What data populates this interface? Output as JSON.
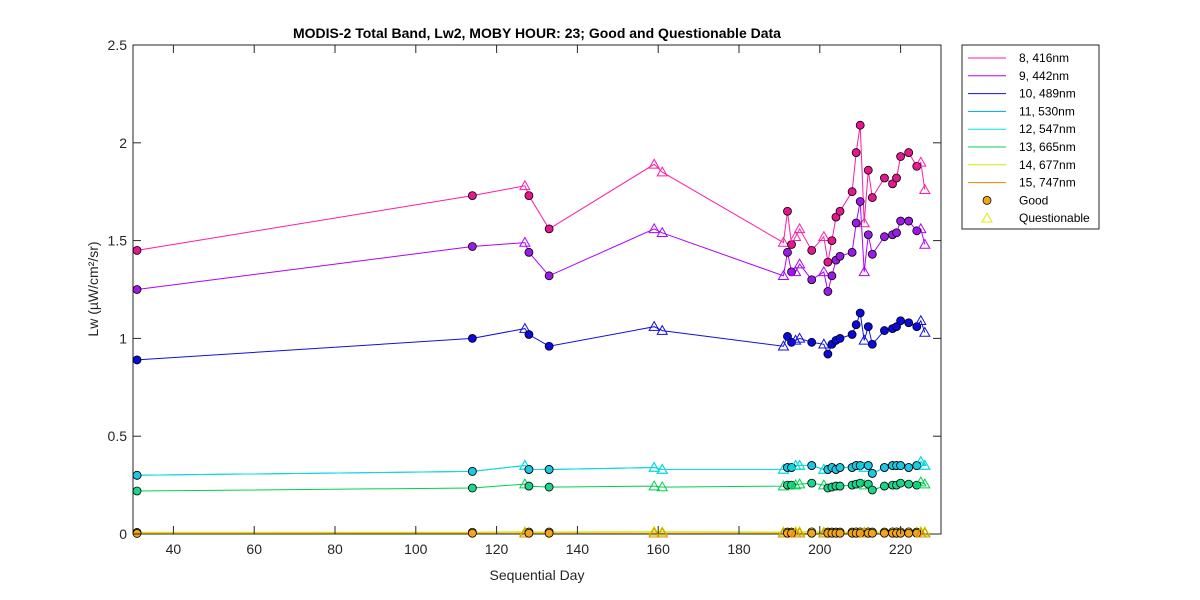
{
  "chart_data": {
    "type": "line",
    "title": "MODIS-2 Total Band,  Lw2, MOBY HOUR: 23;  Good and Questionable Data",
    "xlabel": "Sequential Day",
    "ylabel": "Lw (µW/cm²/sr)",
    "xlim": [
      30,
      230
    ],
    "ylim": [
      0,
      2.5
    ],
    "xticks": [
      40,
      60,
      80,
      100,
      120,
      140,
      160,
      180,
      200,
      220
    ],
    "yticks": [
      0,
      0.5,
      1,
      1.5,
      2,
      2.5
    ],
    "ytick_labels": [
      "0",
      "0.5",
      "1",
      "1.5",
      "2",
      "2.5"
    ],
    "grid": false,
    "legend_position": "outside-top-right",
    "x": [
      31,
      114,
      127,
      128,
      133,
      159,
      161,
      191,
      192,
      193,
      194,
      195,
      198,
      201,
      202,
      203,
      204,
      205,
      208,
      209,
      210,
      211,
      212,
      213,
      216,
      218,
      219,
      220,
      222,
      224,
      225,
      226
    ],
    "quality": [
      "G",
      "G",
      "Q",
      "G",
      "G",
      "Q",
      "Q",
      "Q",
      "G",
      "G",
      "Q",
      "Q",
      "G",
      "Q",
      "G",
      "G",
      "G",
      "G",
      "G",
      "G",
      "G",
      "Q",
      "G",
      "G",
      "G",
      "G",
      "G",
      "G",
      "G",
      "G",
      "Q",
      "Q"
    ],
    "series": [
      {
        "name": "8, 416nm",
        "color": "#ff1aa8",
        "marker_color": "#e6168f",
        "values": [
          1.45,
          1.73,
          1.78,
          1.73,
          1.56,
          1.89,
          1.85,
          1.49,
          1.65,
          1.48,
          1.52,
          1.56,
          1.45,
          1.52,
          1.39,
          1.5,
          1.62,
          1.65,
          1.75,
          1.95,
          2.09,
          1.59,
          1.86,
          1.72,
          1.82,
          1.79,
          1.82,
          1.93,
          1.95,
          1.88,
          1.9,
          1.76
        ]
      },
      {
        "name": "9, 442nm",
        "color": "#b000ff",
        "marker_color": "#9a1ae6",
        "values": [
          1.25,
          1.47,
          1.49,
          1.44,
          1.32,
          1.56,
          1.54,
          1.32,
          1.44,
          1.34,
          1.34,
          1.38,
          1.3,
          1.34,
          1.24,
          1.32,
          1.4,
          1.42,
          1.44,
          1.59,
          1.7,
          1.34,
          1.53,
          1.43,
          1.52,
          1.53,
          1.54,
          1.6,
          1.6,
          1.55,
          1.56,
          1.48
        ]
      },
      {
        "name": "10, 489nm",
        "color": "#1010e0",
        "marker_color": "#0a0adc",
        "values": [
          0.89,
          1.0,
          1.05,
          1.02,
          0.96,
          1.06,
          1.04,
          0.96,
          1.01,
          0.98,
          0.99,
          1.0,
          0.98,
          0.97,
          0.92,
          0.97,
          0.99,
          1.0,
          1.02,
          1.07,
          1.13,
          0.99,
          1.06,
          0.97,
          1.04,
          1.05,
          1.06,
          1.09,
          1.08,
          1.06,
          1.09,
          1.03
        ]
      },
      {
        "name": "11, 530nm",
        "color": "#00a0e0",
        "marker_color": "#1a9fe6",
        "values": [
          0.3,
          0.32,
          0.35,
          0.33,
          0.33,
          0.34,
          0.33,
          0.33,
          0.34,
          0.34,
          0.35,
          0.35,
          0.35,
          0.33,
          0.33,
          0.34,
          0.33,
          0.34,
          0.34,
          0.35,
          0.35,
          0.34,
          0.35,
          0.31,
          0.34,
          0.35,
          0.35,
          0.35,
          0.34,
          0.35,
          0.37,
          0.35
        ]
      },
      {
        "name": "12, 547nm",
        "color": "#00e0e0",
        "marker_color": "#1ac8e6",
        "values": [
          0.3,
          0.32,
          0.35,
          0.33,
          0.33,
          0.34,
          0.33,
          0.33,
          0.34,
          0.34,
          0.35,
          0.35,
          0.35,
          0.33,
          0.33,
          0.34,
          0.33,
          0.34,
          0.34,
          0.35,
          0.35,
          0.34,
          0.35,
          0.31,
          0.34,
          0.35,
          0.35,
          0.35,
          0.34,
          0.35,
          0.37,
          0.35
        ]
      },
      {
        "name": "13, 665nm",
        "color": "#00d050",
        "marker_color": "#1ad68a",
        "values": [
          0.22,
          0.235,
          0.255,
          0.245,
          0.24,
          0.245,
          0.24,
          0.245,
          0.25,
          0.25,
          0.25,
          0.255,
          0.26,
          0.25,
          0.235,
          0.24,
          0.245,
          0.245,
          0.25,
          0.255,
          0.26,
          0.25,
          0.255,
          0.225,
          0.245,
          0.25,
          0.25,
          0.26,
          0.255,
          0.25,
          0.265,
          0.255
        ]
      },
      {
        "name": "14, 677nm",
        "color": "#c0f000",
        "marker_color": "#d8e62a",
        "values": [
          0.008,
          0.009,
          0.011,
          0.01,
          0.01,
          0.012,
          0.011,
          0.01,
          0.01,
          0.01,
          0.011,
          0.011,
          0.011,
          0.01,
          0.01,
          0.01,
          0.01,
          0.01,
          0.01,
          0.011,
          0.011,
          0.01,
          0.011,
          0.01,
          0.01,
          0.011,
          0.011,
          0.011,
          0.011,
          0.01,
          0.012,
          0.011
        ]
      },
      {
        "name": "15, 747nm",
        "color": "#e08a00",
        "marker_color": "#f5a31a",
        "values": [
          0.003,
          0.004,
          0.004,
          0.004,
          0.004,
          0.004,
          0.004,
          0.004,
          0.004,
          0.004,
          0.004,
          0.004,
          0.004,
          0.004,
          0.004,
          0.004,
          0.004,
          0.004,
          0.004,
          0.004,
          0.004,
          0.004,
          0.004,
          0.004,
          0.004,
          0.004,
          0.004,
          0.004,
          0.004,
          0.004,
          0.004,
          0.004
        ]
      }
    ],
    "marker_legend": [
      {
        "name": "Good",
        "shape": "circle",
        "color": "#f5a31a"
      },
      {
        "name": "Questionable",
        "shape": "triangle",
        "color": "#e8e800"
      }
    ]
  }
}
